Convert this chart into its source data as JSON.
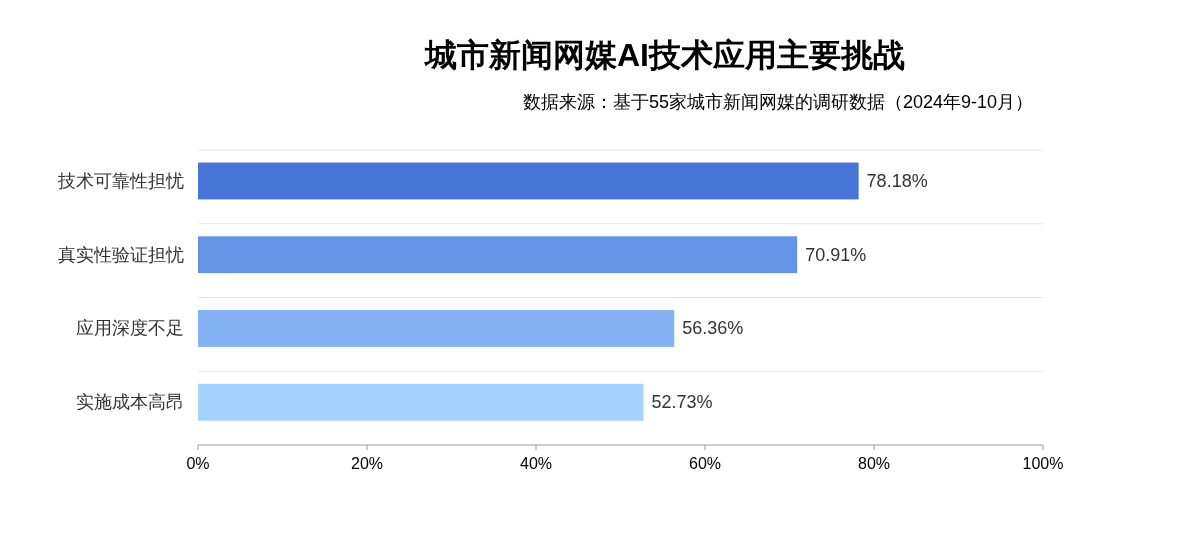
{
  "chart_data": {
    "type": "bar",
    "orientation": "horizontal",
    "title": "城市新闻网媒AI技术应用主要挑战",
    "subtitle": "数据来源：基于55家城市新闻网媒的调研数据（2024年9-10月）",
    "categories": [
      "技术可靠性担忧",
      "真实性验证担忧",
      "应用深度不足",
      "实施成本高昂"
    ],
    "values": [
      78.18,
      70.91,
      56.36,
      52.73
    ],
    "colors": [
      "#4674d7",
      "#6593e6",
      "#84b2f7",
      "#a5d3ff"
    ],
    "value_labels": [
      "78.18%",
      "70.91%",
      "56.36%",
      "52.73%"
    ],
    "xlim": [
      0,
      100
    ],
    "xticks": [
      {
        "value": 0,
        "label": "0%"
      },
      {
        "value": 20,
        "label": "20%"
      },
      {
        "value": 40,
        "label": "40%"
      },
      {
        "value": 60,
        "label": "60%"
      },
      {
        "value": 80,
        "label": "80%"
      },
      {
        "value": 100,
        "label": "100%"
      }
    ],
    "grid": "y"
  }
}
